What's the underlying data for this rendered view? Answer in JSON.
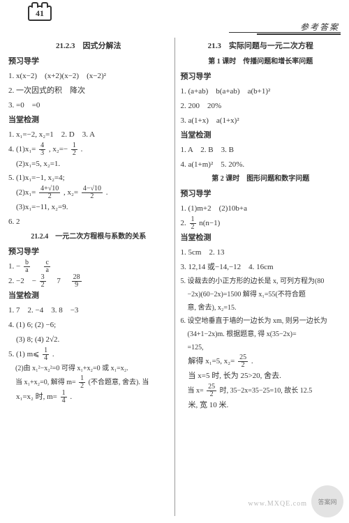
{
  "page_number": "41",
  "header_right": "参考答案",
  "left": {
    "title1": "21.2.3　因式分解法",
    "h1": "预习导学",
    "l1": "1. x(x−2)　(x+2)(x−2)　(x−2)²",
    "l2": "2. 一次因式的积　降次",
    "l3": "3. =0　=0",
    "h2": "当堂检测",
    "l4": "1. x₁=−2, x₂=1　2. D　3. A",
    "l5a": "4. (1)x₁=",
    "l5b": ", x₂=−",
    "l5c": ".",
    "l6": "　(2)x₁=5, x₂=1.",
    "l7": "5. (1)x₁=−1, x₂=4;",
    "l8a": "　(2)x₁=",
    "l8b": ", x₂=",
    "l8c": ".",
    "l9": "　(3)x₁=−11, x₂=9.",
    "l10": "6. 2",
    "title2": "21.2.4　一元二次方程根与系数的关系",
    "h3": "预习导学",
    "l11a": "1. −",
    "l11b": "　",
    "l12a": "2. −2　−",
    "l12b": "　7　",
    "h4": "当堂检测",
    "l13": "1. 7　2. −4　3. 8　−3",
    "l14": "4. (1) 6; (2) −6;",
    "l15": "　(3) 8; (4) 2√2.",
    "l16a": "5. (1) m⩽",
    "l16b": ".",
    "l17": "　(2)由 x₁²−x₂²=0 可得 x₁+x₂=0 或 x₁=x₂.",
    "l18a": "　当 x₁+x₂=0, 解得 m=",
    "l18b": "(不合题意, 舍去). 当",
    "l19a": "　x₁=x₂ 时, m=",
    "l19b": "."
  },
  "right": {
    "title1": "21.3　实际问题与一元二次方程",
    "subtitle1": "第 1 课时　传播问题和增长率问题",
    "h1": "预习导学",
    "l1": "1. (a+ab)　b(a+ab)　a(b+1)²",
    "l2": "2. 200　20%",
    "l3": "3. a(1+x)　a(1+x)²",
    "h2": "当堂检测",
    "l4": "1. A　2. B　3. B",
    "l5": "4. a(1+m)²　5. 20%.",
    "subtitle2": "第 2 课时　图形问题和数字问题",
    "h3": "预习导学",
    "l6": "1. (1)m+2　(2)10b+a",
    "l7a": "2. ",
    "l7b": "n(n−1)",
    "h4": "当堂检测",
    "l8": "1. 5cm　2. 13",
    "l9": "3. 12,14 或−14,−12　4. 16cm",
    "l10": "5. 设裁去的小正方形的边长是 x, 可列方程为(80",
    "l11": "　−2x)(60−2x)=1500 解得 x₁=55(不符合题",
    "l12": "　意, 舍去), x₂=15.",
    "l13": "6. 设空地垂直于墙的一边长为 xm, 则另一边长为",
    "l14": "　(34+1−2x)m. 根据题意, 得 x(35−2x)=",
    "l14b": "　=125,",
    "l15a": "　解得 x₁=5, x₂=",
    "l15b": ".",
    "l16": "　当 x=5 时, 长为 25>20, 舍去.",
    "l17a": "　当 x=",
    "l17b": "时, 35−2x=35−25=10, 故长 12.5",
    "l18": "　米, 宽 10 米."
  },
  "fracs": {
    "f43": {
      "n": "4",
      "d": "3"
    },
    "f12": {
      "n": "1",
      "d": "2"
    },
    "f4p10_2a": {
      "n": "4+√10",
      "d": "2"
    },
    "f4m10_2": {
      "n": "4−√10",
      "d": "2"
    },
    "fba": {
      "n": "b",
      "d": "a"
    },
    "fca": {
      "n": "c",
      "d": "a"
    },
    "f32": {
      "n": "3",
      "d": "2"
    },
    "f289": {
      "n": "28",
      "d": "9"
    },
    "f14": {
      "n": "1",
      "d": "4"
    },
    "f12b": {
      "n": "1",
      "d": "2"
    },
    "f14b": {
      "n": "1",
      "d": "4"
    },
    "f12r": {
      "n": "1",
      "d": "2"
    },
    "f252": {
      "n": "25",
      "d": "2"
    },
    "f252b": {
      "n": "25",
      "d": "2"
    }
  },
  "watermark": "答案网",
  "watermark_url": "www.MXQE.com"
}
